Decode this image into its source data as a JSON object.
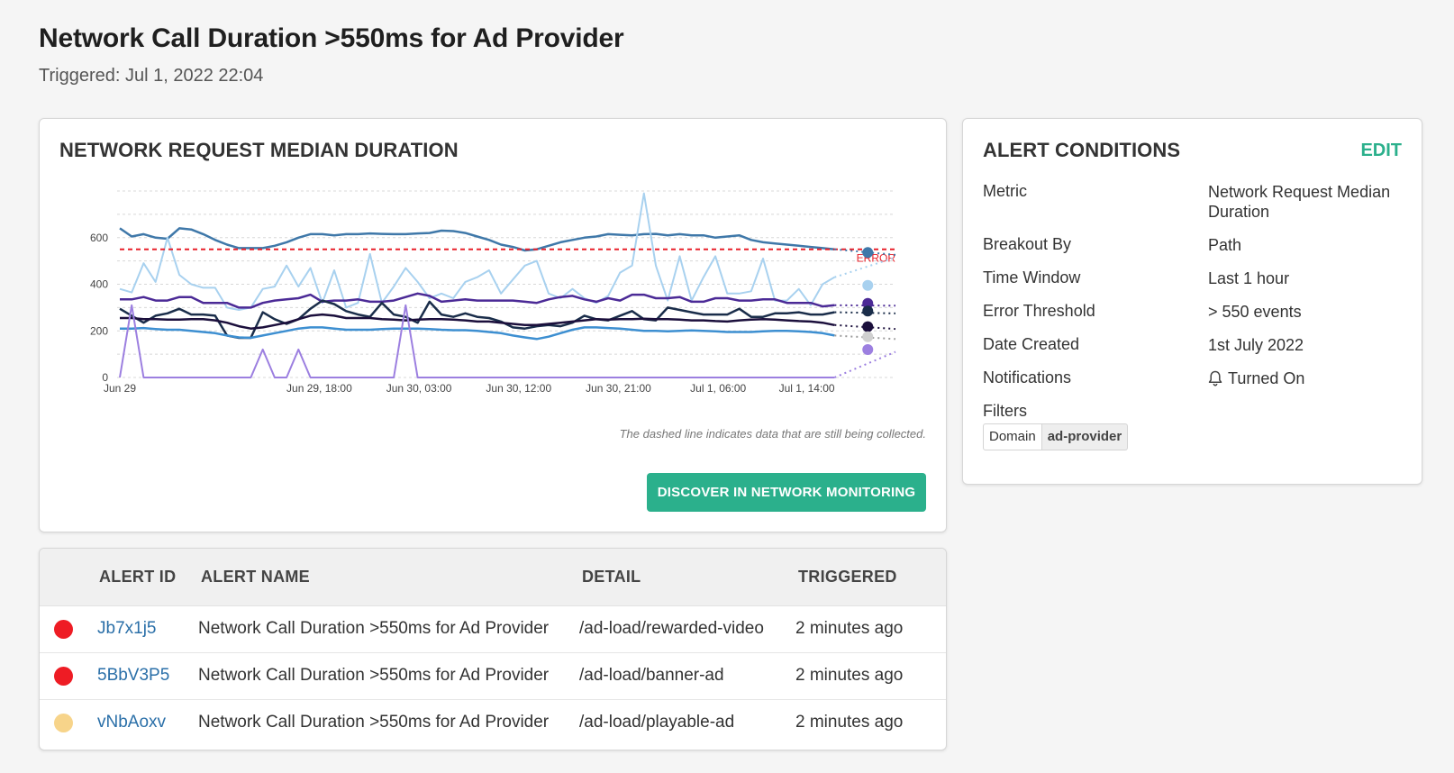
{
  "header": {
    "title": "Network Call Duration >550ms for Ad Provider",
    "triggered": "Triggered: Jul 1, 2022 22:04"
  },
  "chart_card": {
    "title": "NETWORK REQUEST MEDIAN DURATION",
    "note": "The dashed line indicates data that are still being collected.",
    "discover_label": "DISCOVER IN NETWORK MONITORING"
  },
  "chart_data": {
    "type": "line",
    "title": "NETWORK REQUEST MEDIAN DURATION",
    "xlabel": "",
    "ylabel": "",
    "ylim": [
      0,
      800
    ],
    "y_ticks": [
      "0",
      "200",
      "400",
      "600"
    ],
    "x_ticks": [
      "Jun 29",
      "Jun 29, 18:00",
      "Jun 30, 03:00",
      "Jun 30, 12:00",
      "Jun 30, 21:00",
      "Jul 1, 06:00",
      "Jul 1, 14:00"
    ],
    "x_tick_hours": [
      0,
      18,
      27,
      36,
      45,
      54,
      62
    ],
    "x_range_hours": [
      0,
      70
    ],
    "grid": true,
    "threshold": {
      "value": 550,
      "label": "ERROR",
      "color": "#e8202a"
    },
    "series": [
      {
        "color": "#3f78a9",
        "values": [
          640,
          605,
          615,
          600,
          595,
          640,
          635,
          615,
          590,
          570,
          555,
          555,
          555,
          565,
          580,
          600,
          615,
          615,
          610,
          615,
          615,
          618,
          616,
          615,
          615,
          618,
          620,
          630,
          628,
          620,
          605,
          590,
          570,
          560,
          545,
          550,
          565,
          580,
          590,
          600,
          605,
          615,
          612,
          610,
          615,
          616,
          610,
          615,
          610,
          610,
          600,
          605,
          610,
          590,
          580,
          575,
          570,
          565,
          560,
          555,
          550
        ]
      },
      {
        "color": "#a8d1ef",
        "values": [
          380,
          365,
          490,
          410,
          600,
          440,
          400,
          385,
          385,
          300,
          290,
          300,
          380,
          390,
          480,
          390,
          470,
          320,
          460,
          300,
          320,
          530,
          320,
          390,
          470,
          410,
          340,
          360,
          340,
          410,
          430,
          460,
          360,
          420,
          480,
          500,
          360,
          340,
          380,
          340,
          320,
          350,
          450,
          480,
          790,
          480,
          330,
          520,
          330,
          430,
          520,
          360,
          360,
          370,
          510,
          330,
          330,
          380,
          310,
          400,
          430
        ]
      },
      {
        "color": "#4b2a96",
        "values": [
          335,
          335,
          345,
          330,
          330,
          345,
          345,
          320,
          320,
          320,
          300,
          300,
          320,
          330,
          335,
          340,
          355,
          325,
          330,
          330,
          335,
          325,
          325,
          330,
          345,
          360,
          350,
          325,
          330,
          335,
          330,
          330,
          330,
          330,
          325,
          320,
          335,
          345,
          350,
          335,
          325,
          340,
          330,
          355,
          355,
          340,
          340,
          345,
          325,
          325,
          340,
          340,
          330,
          330,
          335,
          335,
          320,
          320,
          320,
          305,
          310
        ]
      },
      {
        "color": "#1a2d4a",
        "values": [
          295,
          265,
          235,
          265,
          275,
          295,
          270,
          270,
          265,
          180,
          170,
          170,
          280,
          250,
          230,
          250,
          295,
          330,
          315,
          285,
          270,
          260,
          320,
          270,
          260,
          235,
          325,
          270,
          260,
          275,
          260,
          255,
          240,
          215,
          210,
          220,
          225,
          220,
          235,
          265,
          250,
          245,
          265,
          285,
          250,
          245,
          300,
          290,
          280,
          270,
          270,
          270,
          295,
          260,
          260,
          275,
          275,
          280,
          270,
          270,
          280
        ]
      },
      {
        "color": "#1b0f3c",
        "values": [
          255,
          255,
          250,
          250,
          248,
          248,
          250,
          250,
          245,
          235,
          220,
          210,
          215,
          225,
          235,
          250,
          265,
          270,
          265,
          255,
          255,
          255,
          250,
          248,
          245,
          248,
          250,
          250,
          248,
          245,
          240,
          240,
          235,
          230,
          225,
          225,
          230,
          235,
          240,
          245,
          250,
          248,
          250,
          250,
          252,
          250,
          250,
          248,
          245,
          245,
          242,
          240,
          245,
          248,
          250,
          248,
          245,
          242,
          240,
          235,
          225
        ]
      },
      {
        "color": "#3d8fd1",
        "values": [
          210,
          210,
          212,
          208,
          205,
          205,
          200,
          195,
          190,
          180,
          172,
          170,
          180,
          190,
          200,
          210,
          215,
          215,
          210,
          205,
          205,
          205,
          208,
          210,
          210,
          210,
          208,
          205,
          203,
          203,
          200,
          195,
          190,
          180,
          172,
          165,
          175,
          190,
          205,
          215,
          215,
          212,
          210,
          205,
          200,
          200,
          198,
          200,
          202,
          200,
          198,
          195,
          195,
          195,
          198,
          200,
          200,
          198,
          195,
          190,
          180
        ]
      },
      {
        "color": "#9c7fe0",
        "values": [
          0,
          310,
          0,
          0,
          0,
          0,
          0,
          0,
          0,
          0,
          0,
          0,
          120,
          0,
          0,
          120,
          0,
          0,
          0,
          0,
          0,
          0,
          0,
          0,
          310,
          0,
          0,
          0,
          0,
          0,
          0,
          0,
          0,
          0,
          0,
          0,
          0,
          0,
          0,
          0,
          0,
          0,
          0,
          0,
          0,
          0,
          0,
          0,
          0,
          0,
          0,
          0,
          0,
          0,
          0,
          0,
          0,
          0,
          0,
          0,
          0
        ]
      }
    ],
    "current_points": [
      {
        "color": "#3f78a9",
        "value": 536
      },
      {
        "color": "#a8d1ef",
        "value": 395
      },
      {
        "color": "#4b2a96",
        "value": 318
      },
      {
        "color": "#1a2d4a",
        "value": 285
      },
      {
        "color": "#1b0f3c",
        "value": 218
      },
      {
        "color": "#d0d0d0",
        "value": 175
      },
      {
        "color": "#9c7fe0",
        "value": 120
      }
    ]
  },
  "conditions": {
    "title": "ALERT CONDITIONS",
    "edit_label": "EDIT",
    "rows": [
      {
        "label": "Metric",
        "value": "Network Request Median Duration"
      },
      {
        "label": "Breakout By",
        "value": "Path"
      },
      {
        "label": "Time Window",
        "value": "Last 1 hour"
      },
      {
        "label": "Error Threshold",
        "value": "> 550 events"
      },
      {
        "label": "Date Created",
        "value": "1st July 2022"
      },
      {
        "label": "Notifications",
        "value": "Turned On",
        "icon": "bell-icon"
      }
    ],
    "filters_label": "Filters",
    "filter_key": "Domain",
    "filter_value": "ad-provider"
  },
  "table": {
    "headers": {
      "id": "ALERT ID",
      "name": "ALERT NAME",
      "detail": "DETAIL",
      "triggered": "TRIGGERED"
    },
    "rows": [
      {
        "status_color": "#ee1c24",
        "id": "Jb7x1j5",
        "name": "Network Call Duration >550ms for Ad Provider",
        "detail": "/ad-load/rewarded-video",
        "triggered": "2 minutes ago"
      },
      {
        "status_color": "#ee1c24",
        "id": "5BbV3P5",
        "name": "Network Call Duration >550ms for Ad Provider",
        "detail": "/ad-load/banner-ad",
        "triggered": "2 minutes ago"
      },
      {
        "status_color": "#f7d48a",
        "id": "vNbAoxv",
        "name": "Network Call Duration >550ms for Ad Provider",
        "detail": "/ad-load/playable-ad",
        "triggered": "2 minutes ago"
      }
    ]
  }
}
